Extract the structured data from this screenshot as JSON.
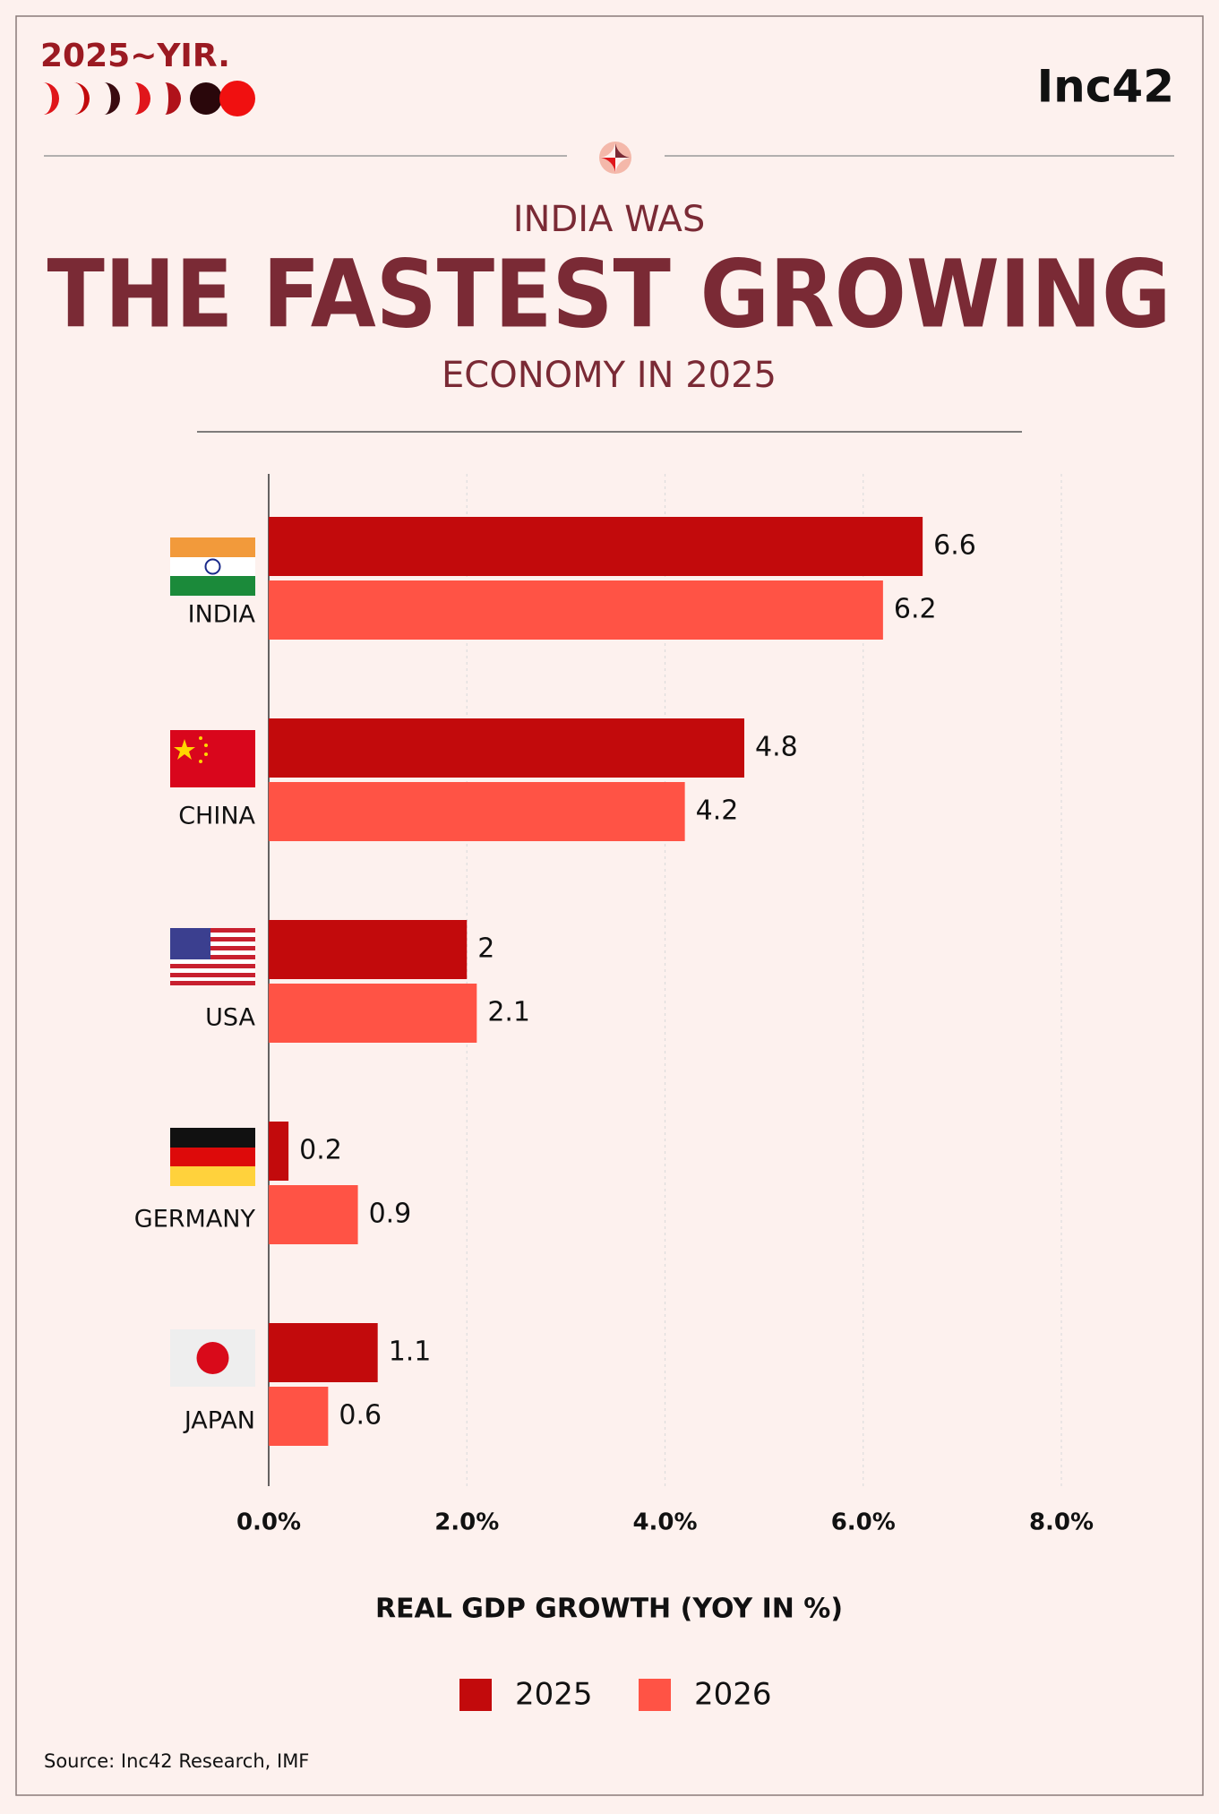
{
  "header": {
    "logo": "2025~YIR.",
    "brand": "Inc42"
  },
  "chart_data": {
    "type": "bar",
    "orientation": "horizontal",
    "kicker": "INDIA WAS",
    "title": "THE FASTEST GROWING",
    "subtitle": "ECONOMY IN 2025",
    "categories": [
      "INDIA",
      "CHINA",
      "USA",
      "GERMANY",
      "JAPAN"
    ],
    "series": [
      {
        "name": "2025",
        "color": "#c20a0c",
        "values": [
          6.6,
          4.8,
          2,
          0.2,
          1.1
        ]
      },
      {
        "name": "2026",
        "color": "#ff5345",
        "values": [
          6.2,
          4.2,
          2.1,
          0.9,
          0.6
        ]
      }
    ],
    "xlim": [
      0,
      8
    ],
    "xticks": [
      {
        "value": 0,
        "label": "0.0%"
      },
      {
        "value": 2,
        "label": "2.0%"
      },
      {
        "value": 4,
        "label": "4.0%"
      },
      {
        "value": 6,
        "label": "6.0%"
      },
      {
        "value": 8,
        "label": "8.0%"
      }
    ],
    "grid": true,
    "x_label": "REAL GDP GROWTH (YOY IN %)",
    "legend": "bottom"
  },
  "footer": {
    "source": "Source: Inc42 Research, IMF"
  }
}
